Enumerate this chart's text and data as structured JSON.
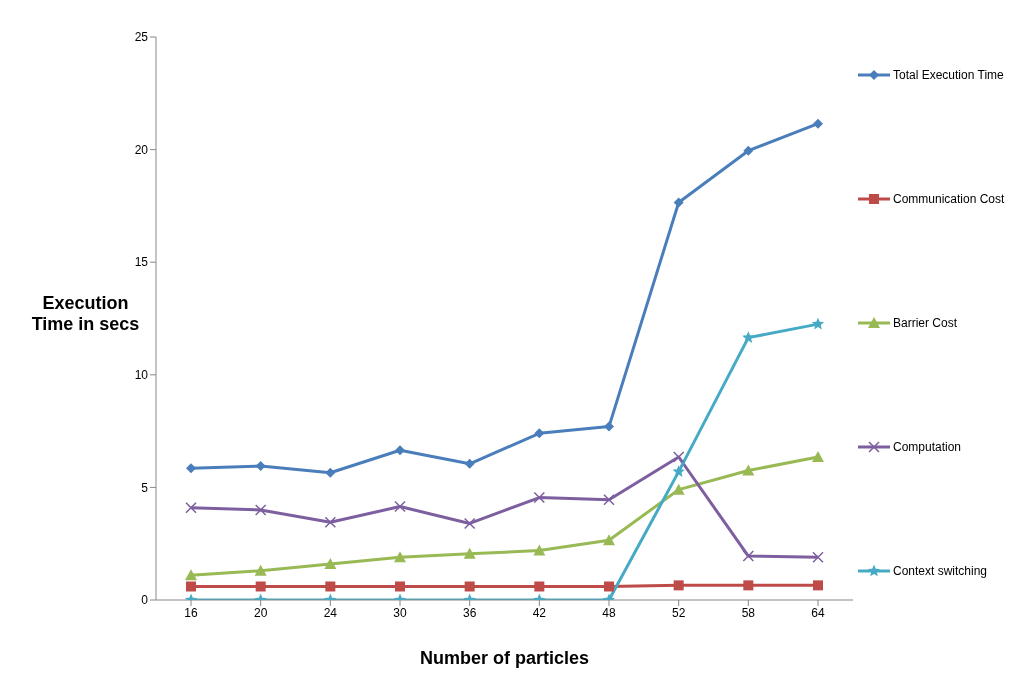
{
  "chart_data": {
    "type": "line",
    "xlabel": "Number of particles",
    "ylabel": "Execution Time in secs",
    "categories": [
      "16",
      "20",
      "24",
      "30",
      "36",
      "42",
      "48",
      "52",
      "58",
      "64"
    ],
    "series": [
      {
        "name": "Total Execution Time",
        "color": "#4a7ebb",
        "marker": "diamond",
        "values": [
          5.85,
          5.95,
          5.65,
          6.65,
          6.05,
          7.4,
          7.7,
          17.65,
          19.95,
          21.15
        ]
      },
      {
        "name": "Communication Cost",
        "color": "#be4b48",
        "marker": "square",
        "values": [
          0.6,
          0.6,
          0.6,
          0.6,
          0.6,
          0.6,
          0.6,
          0.65,
          0.65,
          0.65
        ]
      },
      {
        "name": "Barrier Cost",
        "color": "#98b954",
        "marker": "triangle",
        "values": [
          1.1,
          1.3,
          1.6,
          1.9,
          2.05,
          2.2,
          2.65,
          4.9,
          5.75,
          6.35
        ]
      },
      {
        "name": "Computation",
        "color": "#7d5fa0",
        "marker": "cross",
        "values": [
          4.1,
          4.0,
          3.45,
          4.15,
          3.4,
          4.55,
          4.45,
          6.35,
          1.95,
          1.9
        ]
      },
      {
        "name": "Context switching",
        "color": "#46aac5",
        "marker": "star",
        "values": [
          0,
          0,
          0,
          0,
          0,
          0,
          0,
          5.7,
          11.65,
          12.25
        ]
      }
    ],
    "ylim": [
      0,
      25
    ],
    "yticks": [
      0,
      5,
      10,
      15,
      20,
      25
    ],
    "grid": false,
    "legend": "right",
    "line_style": "solid"
  }
}
